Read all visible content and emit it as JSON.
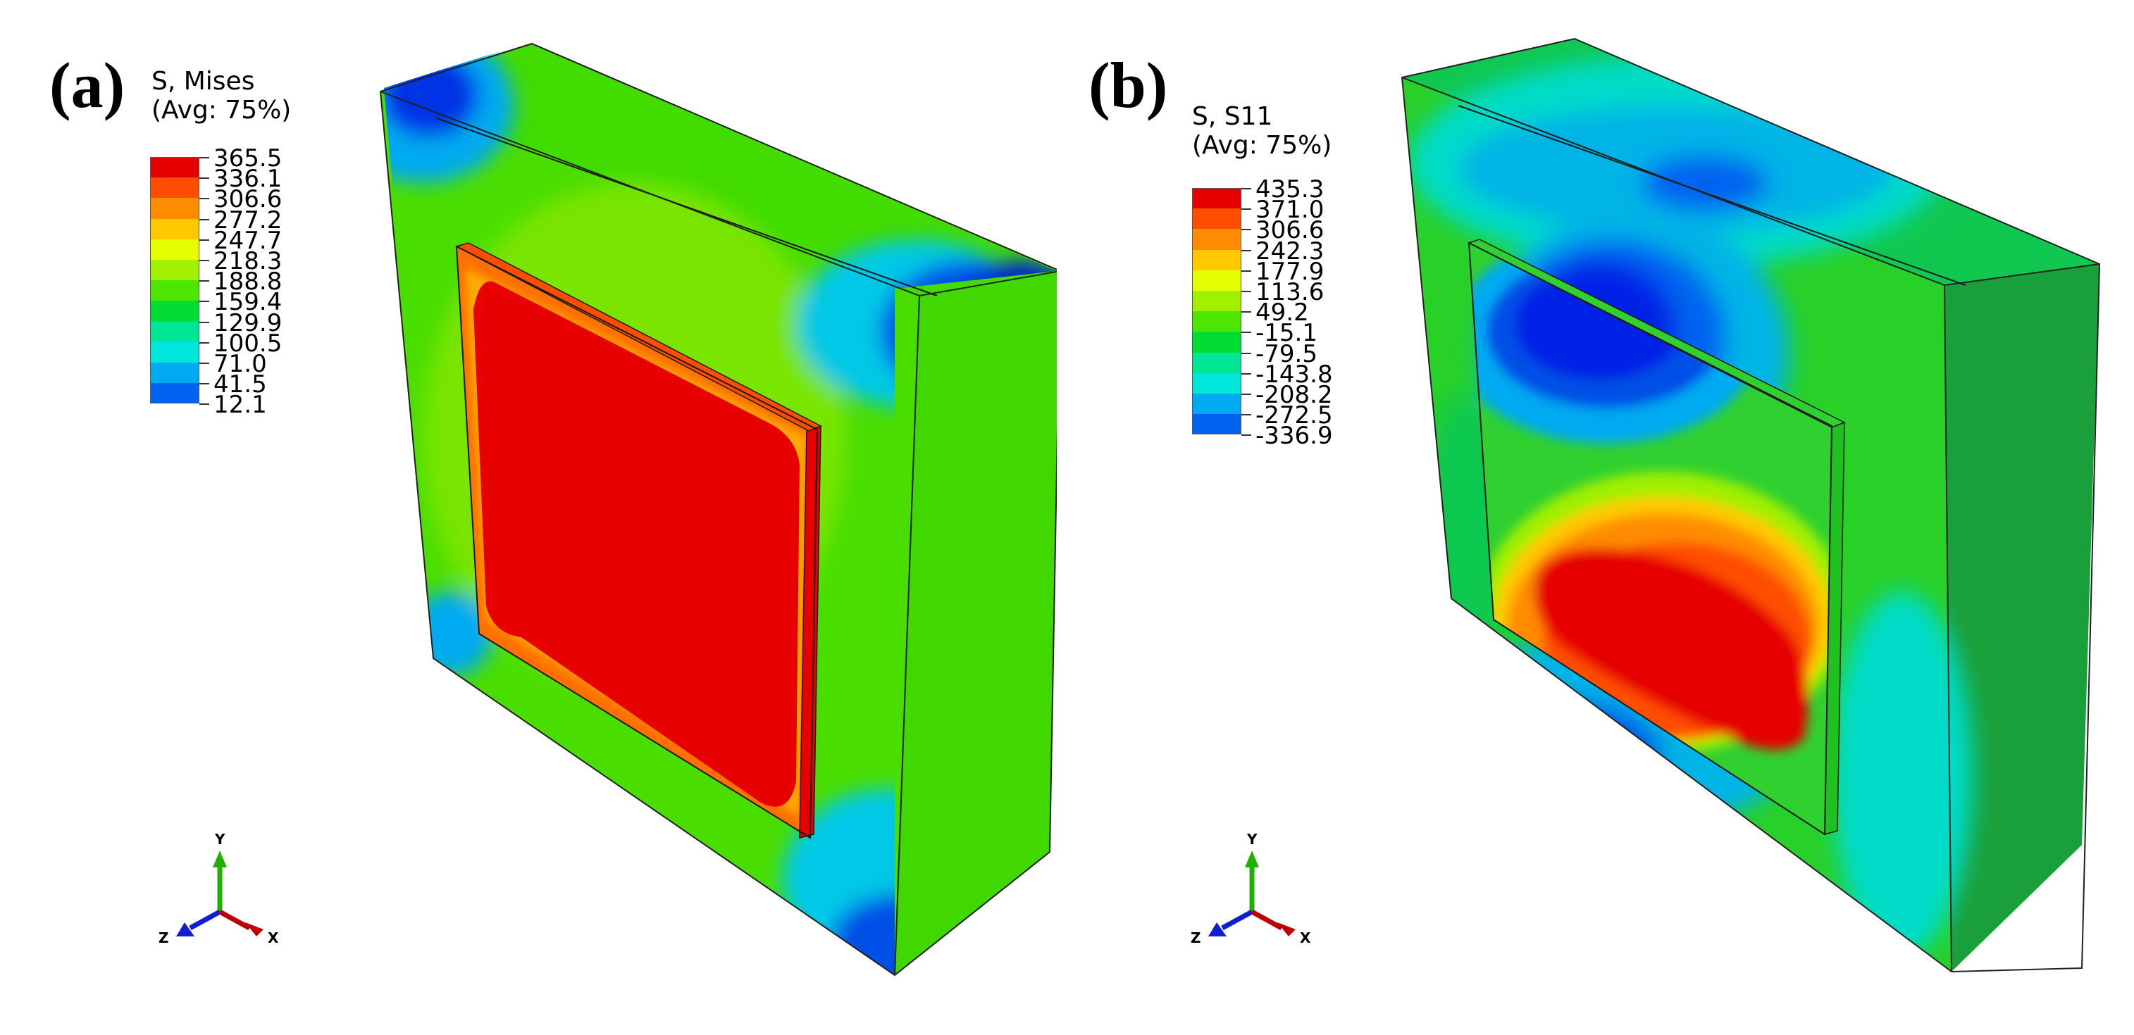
{
  "panels": [
    {
      "label": "(a)",
      "legend_title_line1": "S, Mises",
      "legend_title_line2": "(Avg: 75%)",
      "legend_values": [
        "365.5",
        "336.1",
        "306.6",
        "277.2",
        "247.7",
        "218.3",
        "188.8",
        "159.4",
        "129.9",
        "100.5",
        "71.0",
        "41.5",
        "12.1"
      ],
      "legend_colors": [
        "#e60000",
        "#ff4d00",
        "#ff8c00",
        "#ffc800",
        "#e6ff00",
        "#a0f000",
        "#4de600",
        "#00dc32",
        "#00e696",
        "#00e6dc",
        "#00aaf0",
        "#0064f0",
        "#0020e6"
      ],
      "axis_labels": {
        "y": "Y",
        "z": "Z",
        "x": "X"
      }
    },
    {
      "label": "(b)",
      "legend_title_line1": "S, S11",
      "legend_title_line2": "(Avg: 75%)",
      "legend_values": [
        "435.3",
        "371.0",
        "306.6",
        "242.3",
        "177.9",
        "113.6",
        "49.2",
        "-15.1",
        "-79.5",
        "-143.8",
        "-208.2",
        "-272.5",
        "-336.9"
      ],
      "legend_colors": [
        "#e60000",
        "#ff4d00",
        "#ff8c00",
        "#ffc800",
        "#e6ff00",
        "#a0f000",
        "#4de600",
        "#00dc32",
        "#00e696",
        "#00e6dc",
        "#00aaf0",
        "#0064f0",
        "#0020e6"
      ],
      "axis_labels": {
        "y": "Y",
        "z": "Z",
        "x": "X"
      }
    }
  ]
}
